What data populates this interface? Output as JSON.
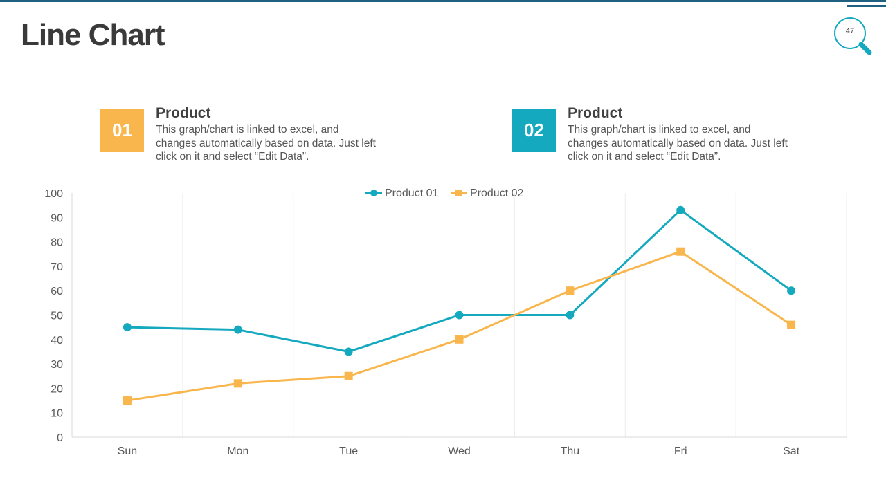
{
  "header": {
    "title": "Line Chart",
    "page_number": "47"
  },
  "cards": [
    {
      "number": "01",
      "title": "Product",
      "description": "This graph/chart is linked to excel, and changes automatically based on data. Just left click on it and select “Edit Data”.",
      "color": "#f8b64c"
    },
    {
      "number": "02",
      "title": "Product",
      "description": "This graph/chart is linked to excel, and changes automatically based on data. Just left click on it and select “Edit Data”.",
      "color": "#15a9bf"
    }
  ],
  "chart_data": {
    "type": "line",
    "title": "",
    "xlabel": "",
    "ylabel": "",
    "categories": [
      "Sun",
      "Mon",
      "Tue",
      "Wed",
      "Thu",
      "Fri",
      "Sat"
    ],
    "ylim": [
      0,
      100
    ],
    "yticks": [
      0,
      10,
      20,
      30,
      40,
      50,
      60,
      70,
      80,
      90,
      100
    ],
    "grid": "vertical",
    "legend_position": "top-center",
    "series": [
      {
        "name": "Product 01",
        "values": [
          45,
          44,
          35,
          50,
          50,
          93,
          60
        ],
        "color": "#15a9bf",
        "marker": "circle"
      },
      {
        "name": "Product 02",
        "values": [
          15,
          22,
          25,
          40,
          60,
          76,
          46
        ],
        "color": "#f8b64c",
        "marker": "square"
      }
    ]
  }
}
